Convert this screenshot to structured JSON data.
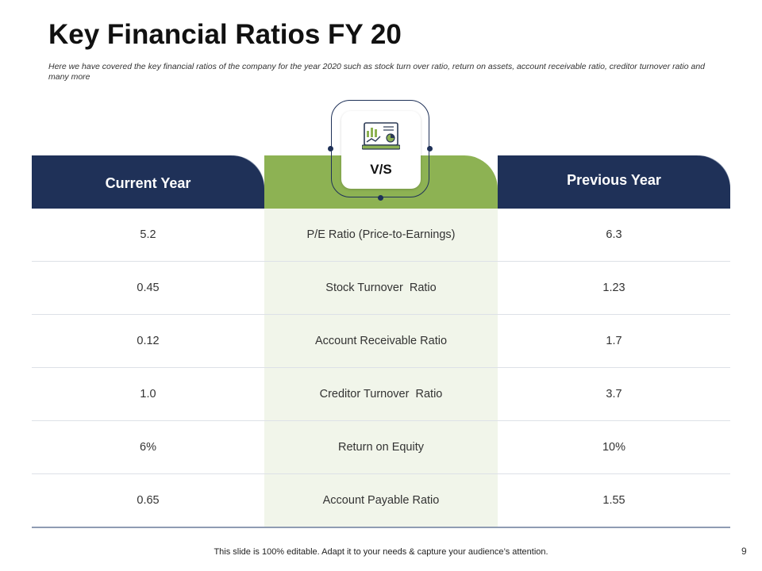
{
  "title": "Key Financial Ratios FY 20",
  "subtitle": "Here we have covered the key financial ratios of the company for the year 2020 such as stock turn over ratio, return on assets, account receivable ratio, creditor turnover ratio and many more",
  "header": {
    "left": "Current Year",
    "center": "V/S",
    "right": "Previous Year"
  },
  "center_icon": "financial-dashboard-laptop-icon",
  "rows": [
    {
      "current": "5.2",
      "ratio": "P/E Ratio (Price-to-Earnings)",
      "previous": "6.3"
    },
    {
      "current": "0.45",
      "ratio": "Stock Turnover  Ratio",
      "previous": "1.23"
    },
    {
      "current": "0.12",
      "ratio": "Account Receivable Ratio",
      "previous": "1.7"
    },
    {
      "current": "1.0",
      "ratio": "Creditor Turnover  Ratio",
      "previous": "3.7"
    },
    {
      "current": "6%",
      "ratio": "Return on Equity",
      "previous": "10%"
    },
    {
      "current": "0.65",
      "ratio": "Account Payable Ratio",
      "previous": "1.55"
    }
  ],
  "footer": "This slide is 100% editable. Adapt it to your needs & capture your audience’s attention.",
  "page_number": "9",
  "colors": {
    "navy": "#1f3158",
    "green": "#8db253",
    "light_green": "#f1f5ea",
    "fold_gray": "#8e9bb3"
  }
}
